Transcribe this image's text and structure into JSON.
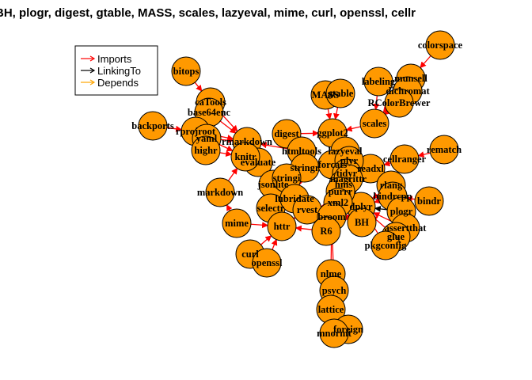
{
  "title": "BH, plogr, digest, gtable, MASS, scales, lazyeval, mime, curl, openssl, cellr",
  "legend": {
    "items": [
      {
        "label": "Imports",
        "color": "#ff0000"
      },
      {
        "label": "LinkingTo",
        "color": "#000000"
      },
      {
        "label": "Depends",
        "color": "#ffa500"
      }
    ]
  },
  "colors": {
    "node_fill": "#ff9900",
    "node_stroke": "#000000",
    "imports": "#ff0000",
    "linking_to": "#000000"
  },
  "nodes": [
    "colorspace",
    "bitops",
    "labeling",
    "munsell",
    "dichromat",
    "MASS",
    "gtable",
    "RColorBrewer",
    "caTools",
    "base64enc",
    "backports",
    "rprojroot",
    "yaml",
    "rmarkdown",
    "digest",
    "ggplot2",
    "scales",
    "highr",
    "evaluate",
    "knitr",
    "htmltools",
    "lazyeval",
    "cellranger",
    "rematch",
    "stringr",
    "forcats",
    "readxl",
    "plyr",
    "jsonlite",
    "stringi",
    "tidyr",
    "rlang",
    "hms",
    "magrittr",
    "bindrcpp",
    "selectr",
    "lubridate",
    "dplyr",
    "purrr",
    "plogr",
    "bindr",
    "markdown",
    "mime",
    "httr",
    "rvest",
    "xml2",
    "broom",
    "R6",
    "BH",
    "assertthat",
    "glue",
    "pkgconfig",
    "curl",
    "openssl",
    "nlme",
    "psych",
    "lattice",
    "foreign",
    "mnormt"
  ],
  "edges": [
    {
      "from": "colorspace",
      "to": "munsell",
      "type": "imports"
    },
    {
      "from": "munsell",
      "to": "scales",
      "type": "imports"
    },
    {
      "from": "labeling",
      "to": "scales",
      "type": "imports"
    },
    {
      "from": "dichromat",
      "to": "scales",
      "type": "imports"
    },
    {
      "from": "RColorBrewer",
      "to": "scales",
      "type": "imports"
    },
    {
      "from": "scales",
      "to": "ggplot2",
      "type": "imports"
    },
    {
      "from": "MASS",
      "to": "ggplot2",
      "type": "imports"
    },
    {
      "from": "gtable",
      "to": "ggplot2",
      "type": "imports"
    },
    {
      "from": "digest",
      "to": "ggplot2",
      "type": "imports"
    },
    {
      "from": "lazyeval",
      "to": "ggplot2",
      "type": "imports"
    },
    {
      "from": "plyr",
      "to": "ggplot2",
      "type": "imports"
    },
    {
      "from": "bitops",
      "to": "caTools",
      "type": "imports"
    },
    {
      "from": "base64enc",
      "to": "rmarkdown",
      "type": "imports"
    },
    {
      "from": "caTools",
      "to": "rmarkdown",
      "type": "imports"
    },
    {
      "from": "backports",
      "to": "rprojroot",
      "type": "imports"
    },
    {
      "from": "rprojroot",
      "to": "rmarkdown",
      "type": "imports"
    },
    {
      "from": "yaml",
      "to": "rmarkdown",
      "type": "imports"
    },
    {
      "from": "yaml",
      "to": "knitr",
      "type": "imports"
    },
    {
      "from": "highr",
      "to": "knitr",
      "type": "imports"
    },
    {
      "from": "knitr",
      "to": "rmarkdown",
      "type": "imports"
    },
    {
      "from": "evaluate",
      "to": "rmarkdown",
      "type": "imports"
    },
    {
      "from": "htmltools",
      "to": "rmarkdown",
      "type": "imports"
    },
    {
      "from": "digest",
      "to": "htmltools",
      "type": "imports"
    },
    {
      "from": "markdown",
      "to": "knitr",
      "type": "imports"
    },
    {
      "from": "mime",
      "to": "markdown",
      "type": "imports"
    },
    {
      "from": "mime",
      "to": "httr",
      "type": "imports"
    },
    {
      "from": "curl",
      "to": "httr",
      "type": "imports"
    },
    {
      "from": "openssl",
      "to": "httr",
      "type": "imports"
    },
    {
      "from": "jsonlite",
      "to": "httr",
      "type": "imports"
    },
    {
      "from": "R6",
      "to": "httr",
      "type": "imports"
    },
    {
      "from": "httr",
      "to": "rvest",
      "type": "imports"
    },
    {
      "from": "xml2",
      "to": "rvest",
      "type": "imports"
    },
    {
      "from": "selectr",
      "to": "rvest",
      "type": "imports"
    },
    {
      "from": "cellranger",
      "to": "readxl",
      "type": "imports"
    },
    {
      "from": "rematch",
      "to": "cellranger",
      "type": "imports"
    },
    {
      "from": "plogr",
      "to": "dplyr",
      "type": "linking_to"
    },
    {
      "from": "BH",
      "to": "dplyr",
      "type": "linking_to"
    },
    {
      "from": "bindrcpp",
      "to": "dplyr",
      "type": "imports"
    },
    {
      "from": "bindr",
      "to": "bindrcpp",
      "type": "imports"
    },
    {
      "from": "assertthat",
      "to": "dplyr",
      "type": "imports"
    },
    {
      "from": "glue",
      "to": "dplyr",
      "type": "imports"
    },
    {
      "from": "pkgconfig",
      "to": "dplyr",
      "type": "imports"
    },
    {
      "from": "R6",
      "to": "dplyr",
      "type": "imports"
    },
    {
      "from": "rlang",
      "to": "dplyr",
      "type": "imports"
    },
    {
      "from": "magrittr",
      "to": "dplyr",
      "type": "imports"
    },
    {
      "from": "dplyr",
      "to": "tidyr",
      "type": "imports"
    },
    {
      "from": "dplyr",
      "to": "broom",
      "type": "imports"
    },
    {
      "from": "stringi",
      "to": "stringr",
      "type": "imports"
    },
    {
      "from": "stringr",
      "to": "lubridate",
      "type": "imports"
    },
    {
      "from": "purrr",
      "to": "tidyr",
      "type": "imports"
    },
    {
      "from": "nlme",
      "to": "broom",
      "type": "imports"
    },
    {
      "from": "psych",
      "to": "broom",
      "type": "imports"
    },
    {
      "from": "lattice",
      "to": "nlme",
      "type": "imports"
    },
    {
      "from": "foreign",
      "to": "psych",
      "type": "imports"
    },
    {
      "from": "mnormt",
      "to": "psych",
      "type": "imports"
    },
    {
      "from": "forcats",
      "to": "readxl",
      "type": "imports"
    },
    {
      "from": "hms",
      "to": "readxl",
      "type": "imports"
    }
  ]
}
